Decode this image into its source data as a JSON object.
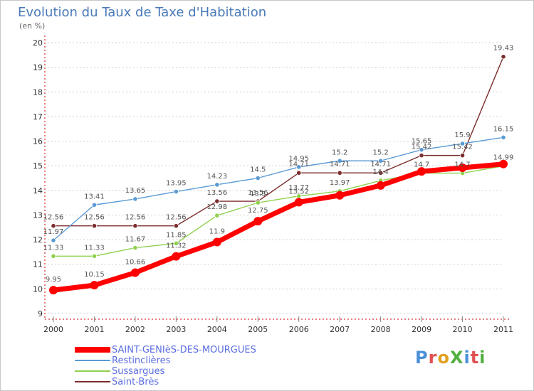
{
  "header": {
    "title": "Evolution du Taux de Taxe d'Habitation",
    "unit": "(en %)"
  },
  "logo_text": "ProXiti",
  "chart_data": {
    "type": "line",
    "title": "Evolution du Taux de Taxe d'Habitation",
    "ylabel": "(en %)",
    "xlabel": "",
    "x": [
      "2000",
      "2001",
      "2002",
      "2003",
      "2004",
      "2005",
      "2006",
      "2007",
      "2008",
      "2009",
      "2010",
      "2011"
    ],
    "ylim": [
      9,
      20
    ],
    "yticks": [
      "9",
      "10",
      "11",
      "12",
      "13",
      "14",
      "15",
      "16",
      "17",
      "18",
      "19",
      "20"
    ],
    "grid": "horizontal dotted",
    "legend_position": "bottom-left",
    "series": [
      {
        "name": "SAINT-GENIèS-DES-MOURGUES",
        "color": "#ff0000",
        "values": [
          9.95,
          10.15,
          10.66,
          11.32,
          11.9,
          12.75,
          13.52,
          13.8,
          14.2,
          14.77,
          14.92,
          15.07
        ],
        "labels": [
          "9.95",
          "10.15",
          "10.66",
          "11.32",
          "11.9",
          "12.75",
          "13.52",
          "",
          "",
          "",
          "",
          ""
        ]
      },
      {
        "name": "Restinclières",
        "color": "#5b9bd5",
        "values": [
          11.97,
          13.41,
          13.65,
          13.95,
          14.23,
          14.5,
          14.95,
          15.2,
          15.2,
          15.65,
          15.9,
          16.15
        ],
        "labels": [
          "11.97",
          "13.41",
          "13.65",
          "13.95",
          "14.23",
          "14.5",
          "14.95",
          "15.2",
          "15.2",
          "15.65",
          "15.9",
          "16.15"
        ]
      },
      {
        "name": "Sussargues",
        "color": "#8fd14f",
        "values": [
          11.33,
          11.33,
          11.67,
          11.85,
          12.98,
          13.5,
          13.77,
          13.97,
          14.4,
          14.7,
          14.7,
          14.99
        ],
        "labels": [
          "11.33",
          "11.33",
          "11.67",
          "11.85",
          "12.98",
          "13.5",
          "13.77",
          "13.97",
          "14.4",
          "14.7",
          "14.7",
          "14.99"
        ]
      },
      {
        "name": "Saint-Brès",
        "color": "#7b2c2c",
        "values": [
          12.56,
          12.56,
          12.56,
          12.56,
          13.56,
          13.56,
          14.71,
          14.71,
          14.71,
          15.42,
          15.42,
          19.43
        ],
        "labels": [
          "12.56",
          "12.56",
          "12.56",
          "12.56",
          "13.56",
          "13.56",
          "14.71",
          "14.71",
          "14.71",
          "15.42",
          "15.42",
          "19.43"
        ]
      }
    ]
  }
}
